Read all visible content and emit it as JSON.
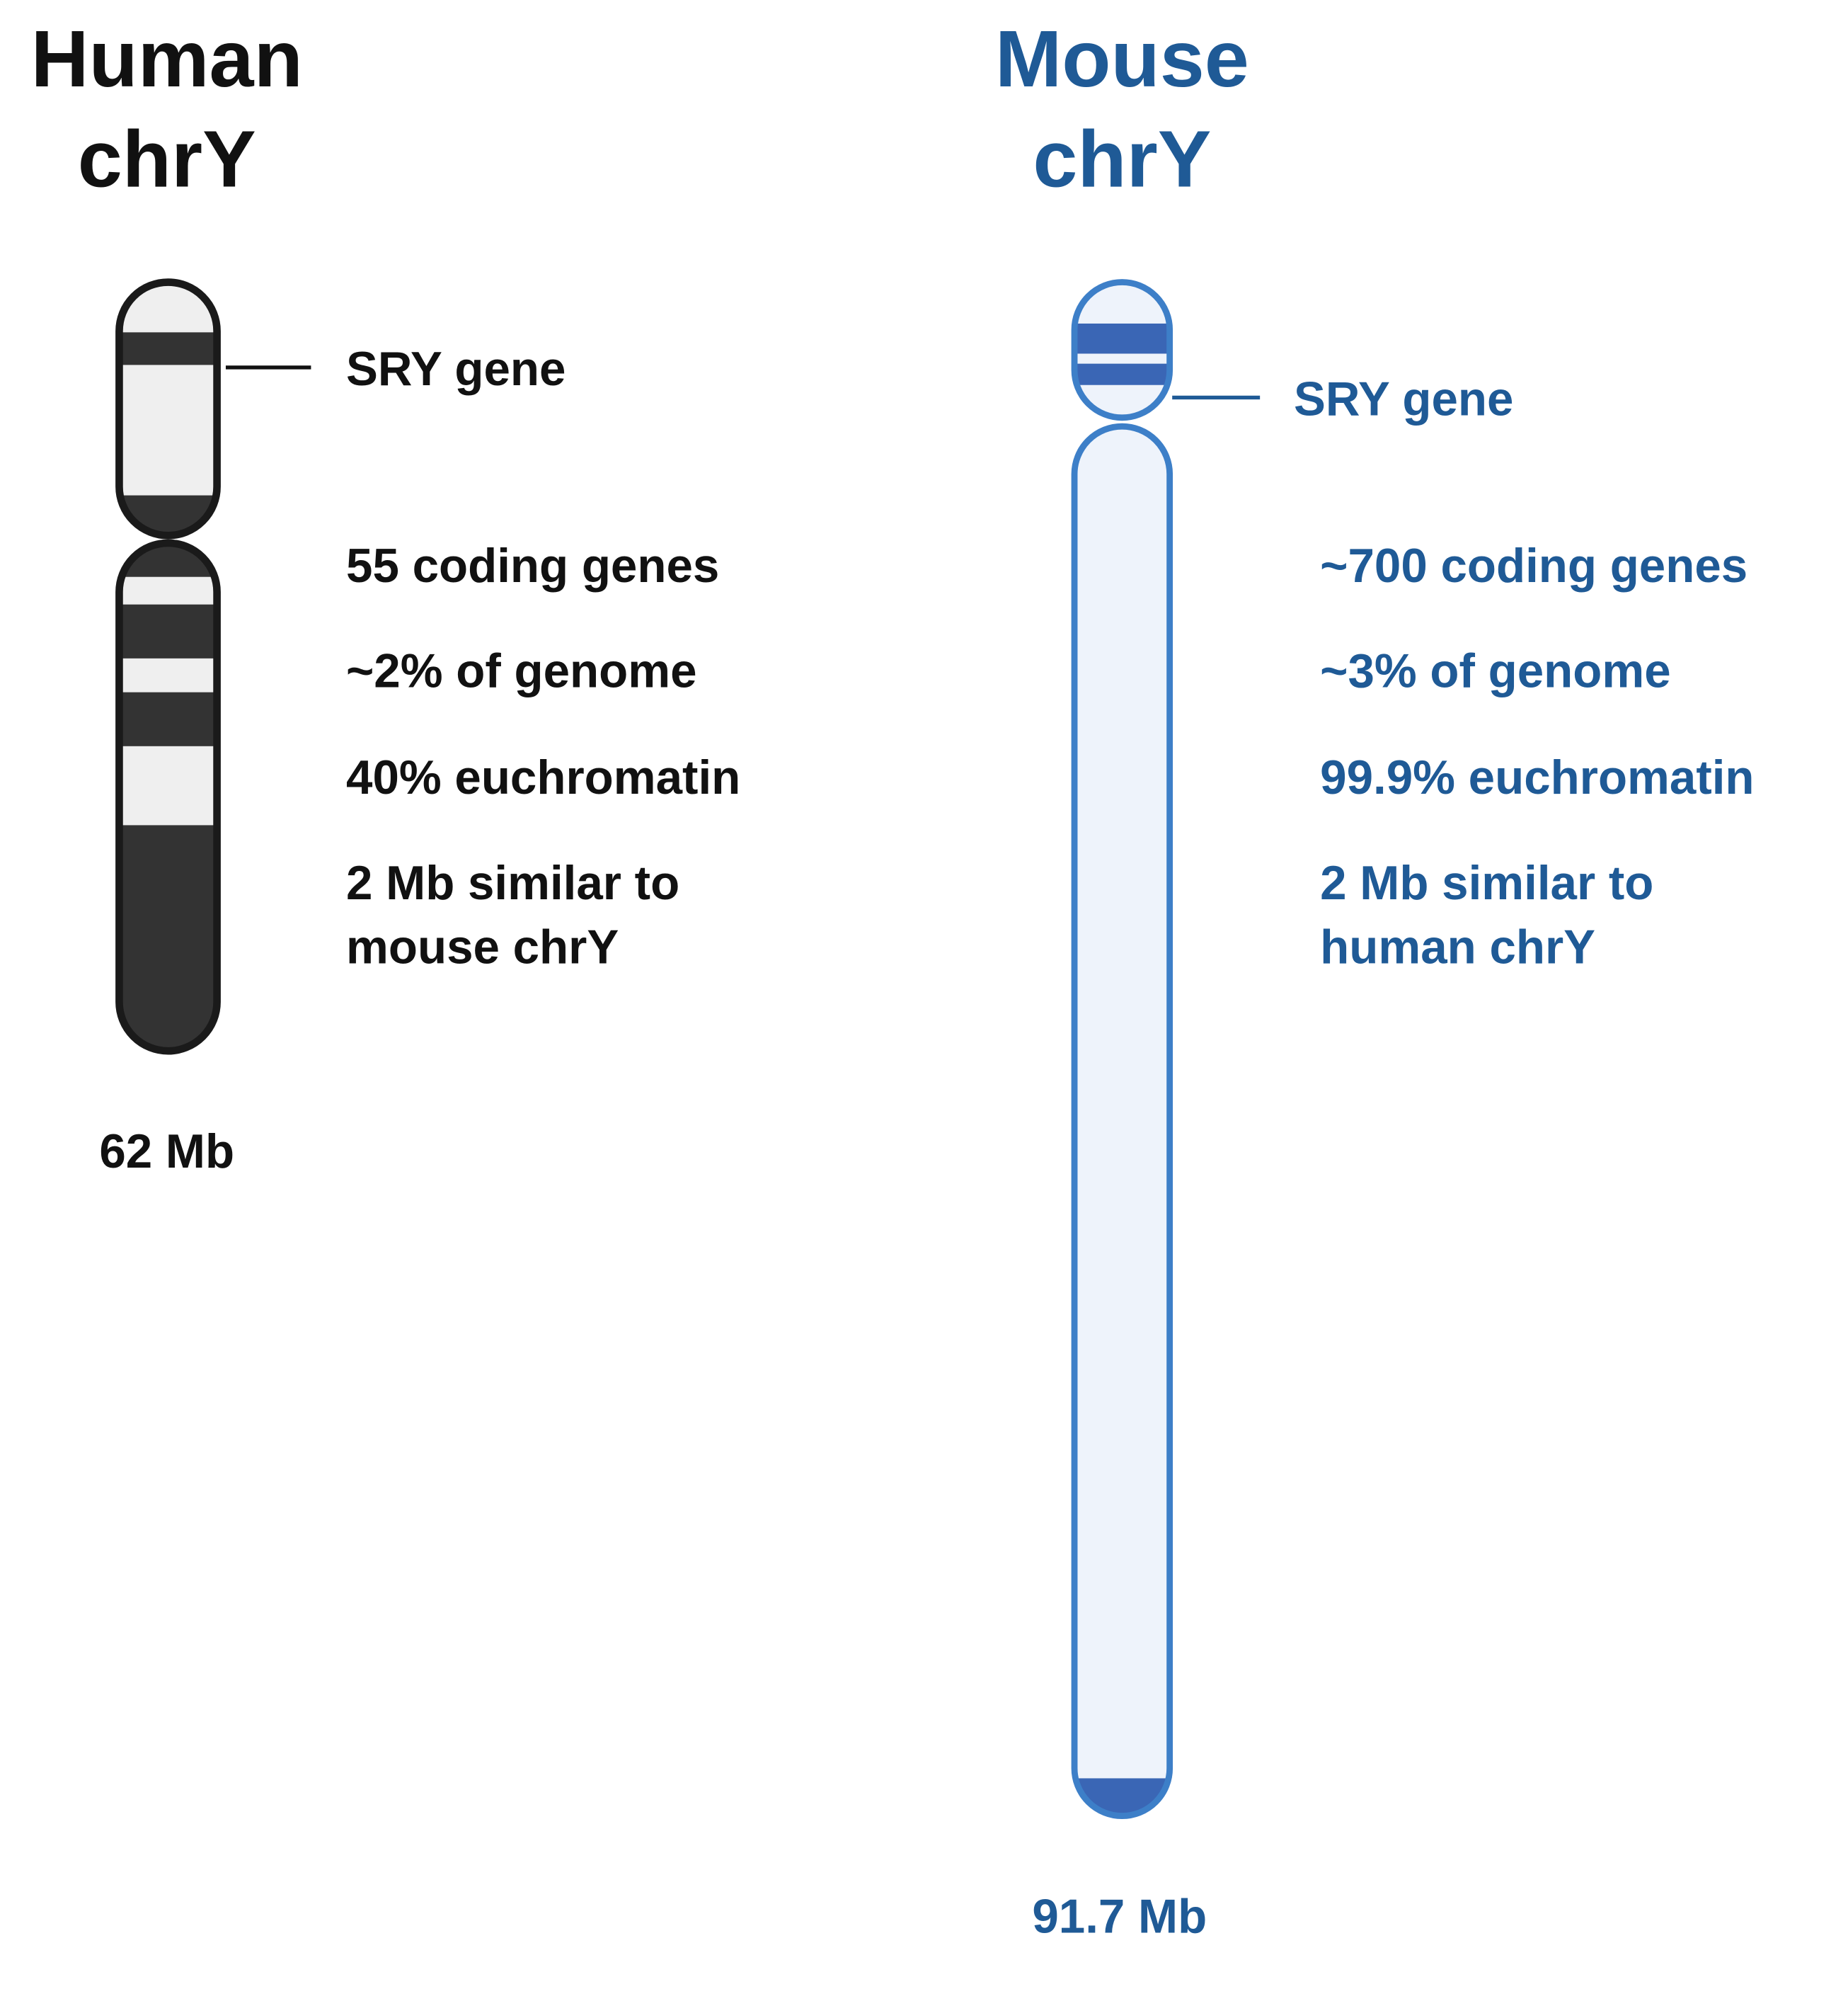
{
  "human": {
    "title": [
      "Human",
      "chrY"
    ],
    "sry_label": "SRY gene",
    "facts": [
      "55 coding genes",
      "~2% of genome",
      "40% euchromatin",
      [
        "2 Mb similar to",
        "mouse chrY"
      ]
    ],
    "size": "62 Mb"
  },
  "mouse": {
    "title": [
      "Mouse",
      "chrY"
    ],
    "sry_label": "SRY gene",
    "facts": [
      "~700 coding genes",
      "~3% of genome",
      "99.9% euchromatin",
      [
        "2 Mb similar to",
        "human chrY"
      ]
    ],
    "size": "91.7 Mb"
  }
}
